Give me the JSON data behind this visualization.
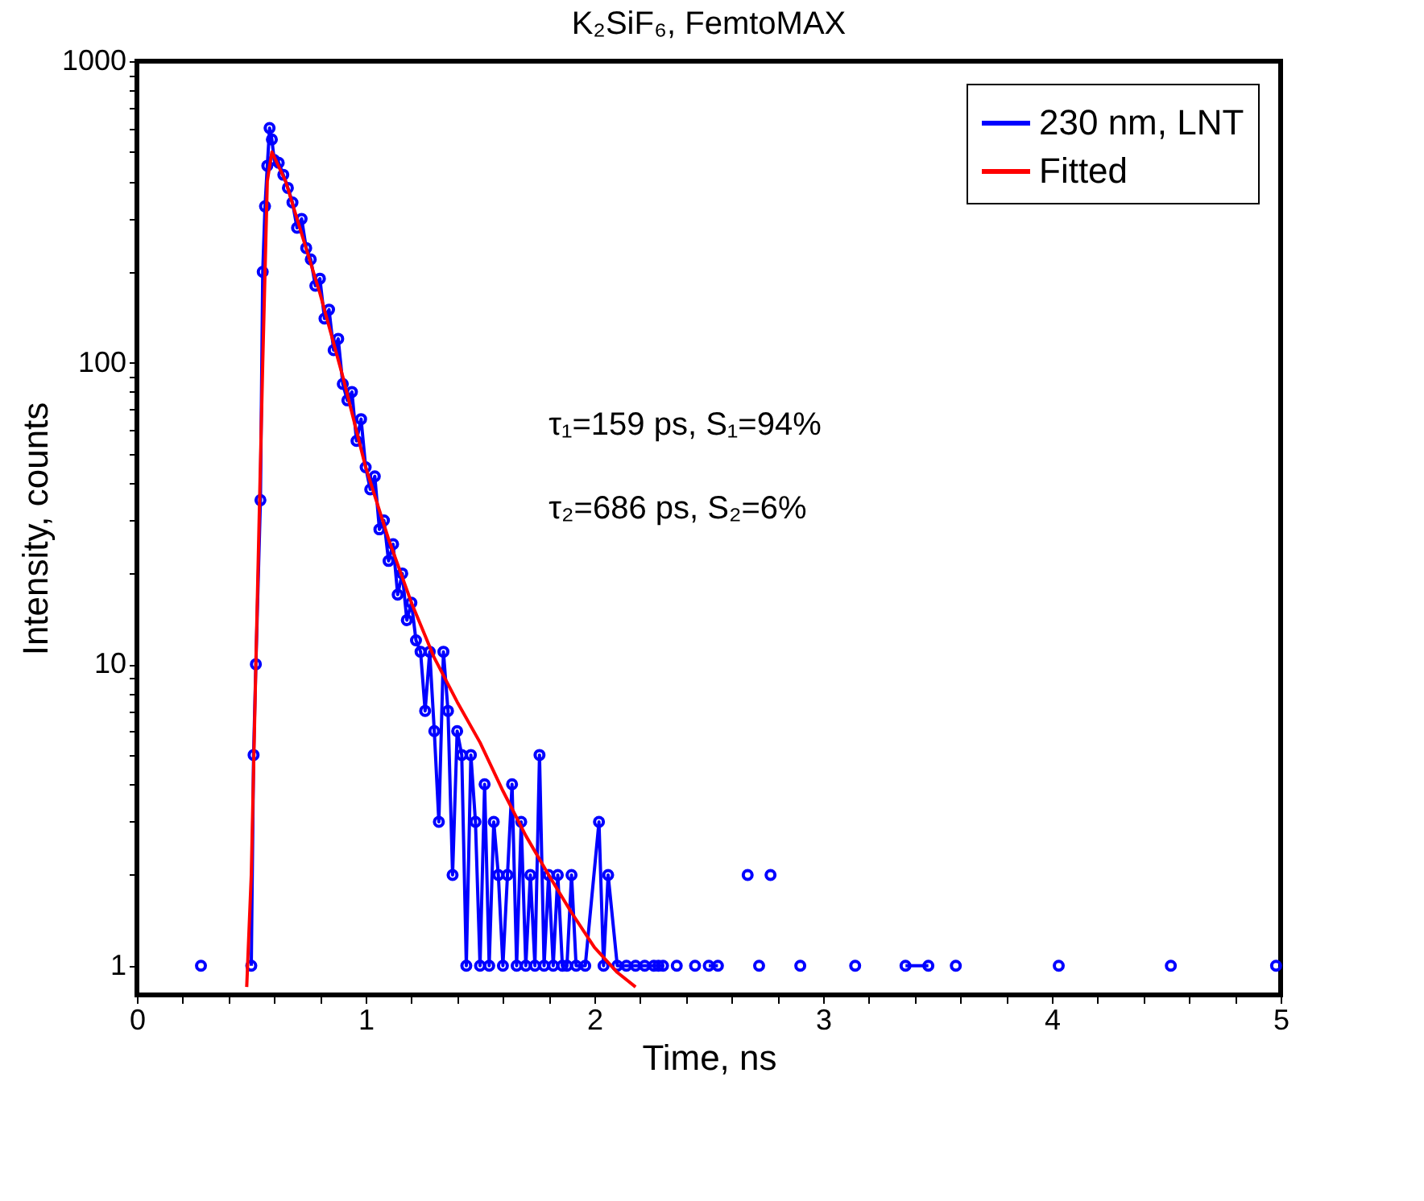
{
  "chart_data": {
    "type": "line",
    "title": "K₂SiF₆, FemtoMAX",
    "xlabel": "Time, ns",
    "ylabel": "Intensity, counts",
    "annotations": [
      "τ₁=159 ps, S₁=94%",
      "τ₂=686 ps, S₂=6%"
    ],
    "series": [
      {
        "name": "230 nm, LNT",
        "color": "#0000ff",
        "marker": "circle",
        "x": [
          0.28,
          0.4,
          0.5,
          0.51,
          0.52,
          0.54,
          0.55,
          0.56,
          0.57,
          0.58,
          0.59,
          0.6,
          0.62,
          0.64,
          0.66,
          0.68,
          0.7,
          0.72,
          0.74,
          0.76,
          0.78,
          0.8,
          0.82,
          0.84,
          0.86,
          0.88,
          0.9,
          0.92,
          0.94,
          0.96,
          0.98,
          1.0,
          1.02,
          1.04,
          1.06,
          1.08,
          1.1,
          1.12,
          1.14,
          1.16,
          1.18,
          1.2,
          1.22,
          1.24,
          1.26,
          1.28,
          1.3,
          1.32,
          1.34,
          1.36,
          1.38,
          1.4,
          1.42,
          1.44,
          1.46,
          1.48,
          1.5,
          1.52,
          1.54,
          1.56,
          1.58,
          1.6,
          1.62,
          1.64,
          1.66,
          1.68,
          1.7,
          1.72,
          1.74,
          1.76,
          1.78,
          1.8,
          1.82,
          1.84,
          1.86,
          1.88,
          1.9,
          1.92,
          1.96,
          2.02,
          2.04,
          2.06,
          2.1,
          2.14,
          2.18,
          2.22,
          2.26,
          2.28,
          2.3,
          2.33,
          2.36,
          2.4,
          2.44,
          2.47,
          2.5,
          2.54,
          2.6,
          2.67,
          2.7,
          2.72,
          2.74,
          2.77,
          2.8,
          2.9,
          3.0,
          3.14,
          3.25,
          3.36,
          3.46,
          3.52,
          3.58,
          3.8,
          4.03,
          4.3,
          4.52,
          4.8,
          4.98
        ],
        "values": [
          1,
          null,
          1,
          5,
          10,
          35,
          200,
          330,
          450,
          600,
          550,
          470,
          460,
          420,
          380,
          340,
          280,
          300,
          240,
          220,
          180,
          190,
          140,
          150,
          110,
          120,
          85,
          75,
          80,
          55,
          65,
          45,
          38,
          42,
          28,
          30,
          22,
          25,
          17,
          20,
          14,
          16,
          12,
          11,
          7,
          11,
          6,
          3,
          11,
          7,
          2,
          6,
          5,
          1,
          5,
          3,
          1,
          4,
          1,
          3,
          2,
          1,
          2,
          4,
          1,
          3,
          1,
          2,
          1,
          5,
          1,
          2,
          1,
          2,
          1,
          1,
          2,
          1,
          1,
          3,
          1,
          2,
          1,
          1,
          1,
          1,
          1,
          1,
          1,
          null,
          1,
          null,
          1,
          null,
          1,
          1,
          null,
          2,
          null,
          1,
          null,
          2,
          null,
          1,
          null,
          1,
          null,
          1,
          1,
          null,
          1,
          null,
          1,
          null,
          1,
          null,
          1
        ]
      },
      {
        "name": "Fitted",
        "color": "#ff0000",
        "marker": "none",
        "x": [
          0.48,
          0.5,
          0.52,
          0.55,
          0.57,
          0.59,
          0.65,
          0.7,
          0.8,
          0.9,
          1.0,
          1.1,
          1.2,
          1.3,
          1.4,
          1.5,
          1.6,
          1.7,
          1.8,
          1.9,
          2.0,
          2.1,
          2.18
        ],
        "values": [
          0.85,
          2,
          10,
          100,
          400,
          500,
          400,
          300,
          170,
          90,
          45,
          26,
          16,
          10.5,
          7.5,
          5.5,
          3.8,
          2.7,
          2,
          1.5,
          1.15,
          0.95,
          0.85
        ]
      }
    ],
    "log": "y",
    "grid": false,
    "legend": "top right",
    "xlim": [
      0,
      5
    ],
    "xticks": [
      0,
      {
        "value": 0.2,
        "label": null
      },
      {
        "value": 0.4,
        "label": null
      },
      {
        "value": 0.6,
        "label": null
      },
      {
        "value": 0.8,
        "label": null
      },
      1,
      {
        "value": 1.2,
        "label": null
      },
      {
        "value": 1.4,
        "label": null
      },
      {
        "value": 1.6,
        "label": null
      },
      {
        "value": 1.8,
        "label": null
      },
      2,
      {
        "value": 2.2,
        "label": null
      },
      {
        "value": 2.4,
        "label": null
      },
      {
        "value": 2.6,
        "label": null
      },
      {
        "value": 2.8,
        "label": null
      },
      3,
      {
        "value": 3.2,
        "label": null
      },
      {
        "value": 3.4,
        "label": null
      },
      {
        "value": 3.6,
        "label": null
      },
      {
        "value": 3.8,
        "label": null
      },
      4,
      {
        "value": 4.2,
        "label": null
      },
      {
        "value": 4.4,
        "label": null
      },
      {
        "value": 4.6,
        "label": null
      },
      {
        "value": 4.8,
        "label": null
      },
      5
    ],
    "ylim": [
      0.8,
      1000
    ],
    "yticks": [
      1,
      {
        "value": 2,
        "label": null
      },
      {
        "value": 3,
        "label": null
      },
      {
        "value": 4,
        "label": null
      },
      {
        "value": 5,
        "label": null
      },
      {
        "value": 6,
        "label": null
      },
      {
        "value": 7,
        "label": null
      },
      {
        "value": 8,
        "label": null
      },
      {
        "value": 9,
        "label": null
      },
      10,
      {
        "value": 20,
        "label": null
      },
      {
        "value": 30,
        "label": null
      },
      {
        "value": 40,
        "label": null
      },
      {
        "value": 50,
        "label": null
      },
      {
        "value": 60,
        "label": null
      },
      {
        "value": 70,
        "label": null
      },
      {
        "value": 80,
        "label": null
      },
      {
        "value": 90,
        "label": null
      },
      100,
      {
        "value": 200,
        "label": null
      },
      {
        "value": 300,
        "label": null
      },
      {
        "value": 400,
        "label": null
      },
      {
        "value": 500,
        "label": null
      },
      {
        "value": 600,
        "label": null
      },
      {
        "value": 700,
        "label": null
      },
      {
        "value": 800,
        "label": null
      },
      {
        "value": 900,
        "label": null
      },
      1000
    ]
  }
}
